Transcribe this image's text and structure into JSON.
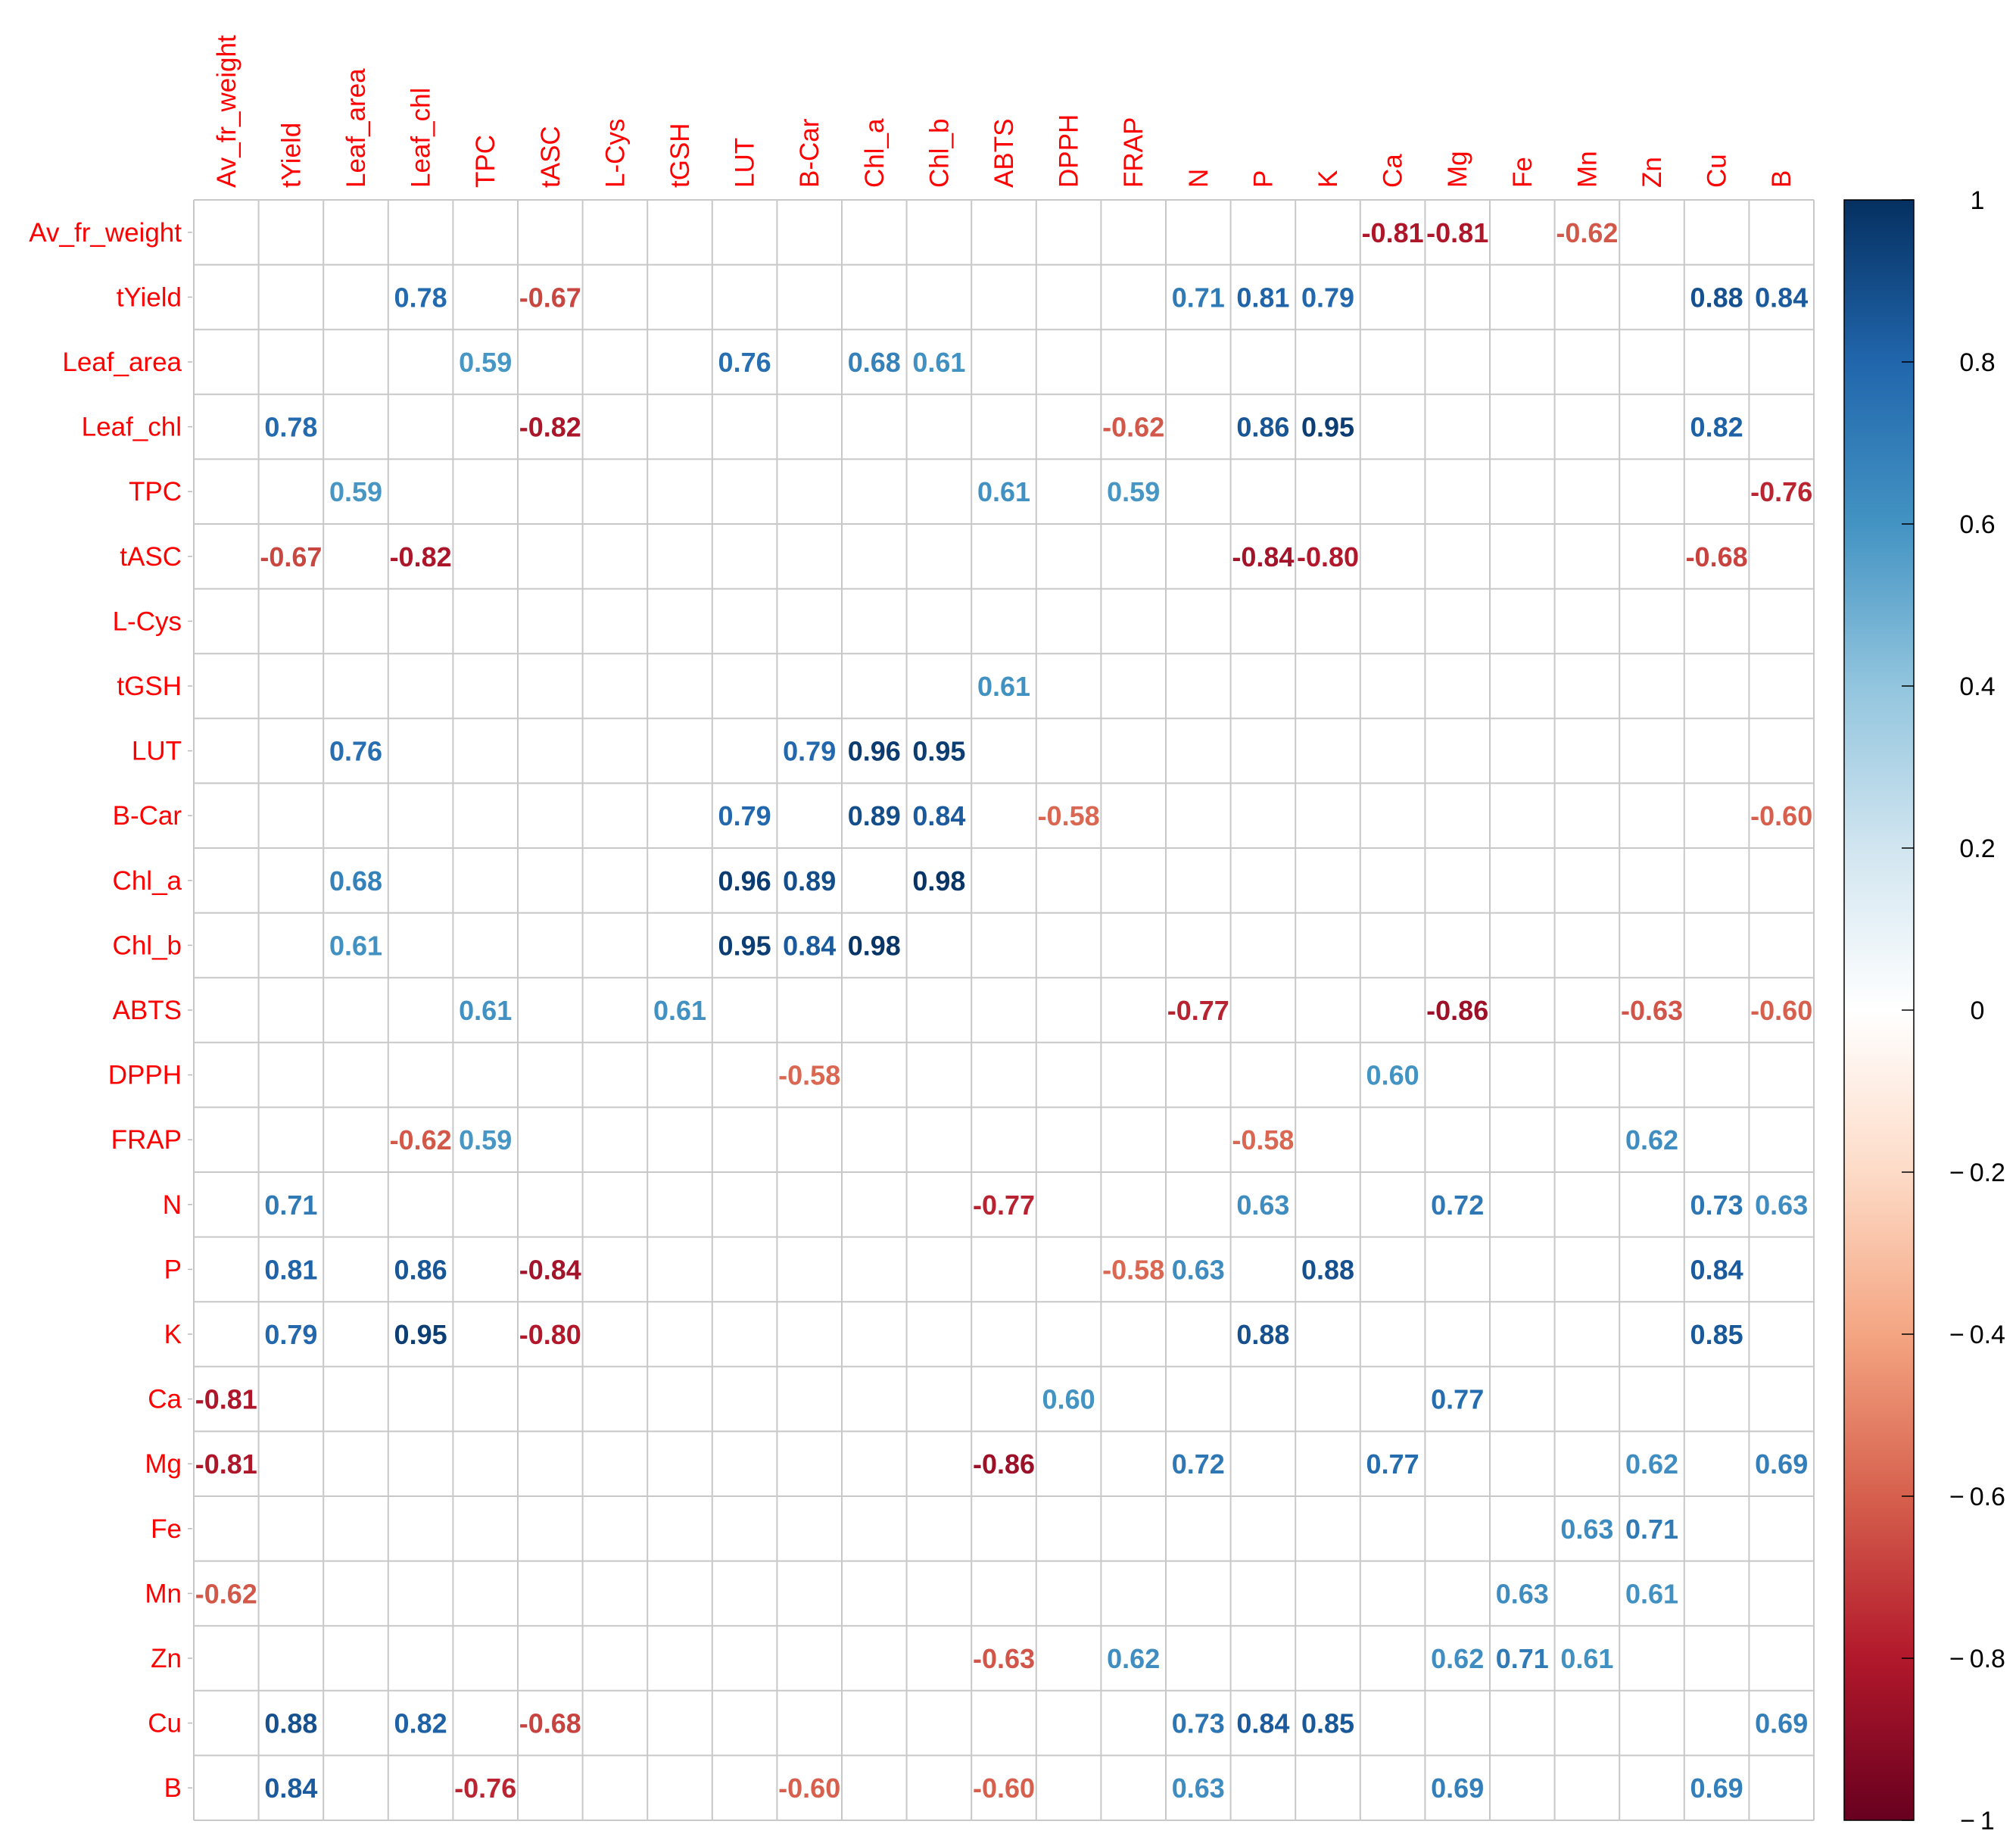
{
  "chart_data": {
    "type": "heatmap",
    "title": "",
    "variables": [
      "Av_fr_weight",
      "tYield",
      "Leaf_area",
      "Leaf_chl",
      "TPC",
      "tASC",
      "L-Cys",
      "tGSH",
      "LUT",
      "B-Car",
      "Chl_a",
      "Chl_b",
      "ABTS",
      "DPPH",
      "FRAP",
      "N",
      "P",
      "K",
      "Ca",
      "Mg",
      "Fe",
      "Mn",
      "Zn",
      "Cu",
      "B"
    ],
    "value_labels": [
      [
        "",
        "",
        "",
        "",
        "",
        "",
        "",
        "",
        "",
        "",
        "",
        "",
        "",
        "",
        "",
        "",
        "",
        "",
        "-0.81",
        "-0.81",
        "",
        "-0.62",
        "",
        "",
        ""
      ],
      [
        "",
        "",
        "",
        "0.78",
        "",
        "-0.67",
        "",
        "",
        "",
        "",
        "",
        "",
        "",
        "",
        "",
        "0.71",
        "0.81",
        "0.79",
        "",
        "",
        "",
        "",
        "",
        "0.88",
        "0.84"
      ],
      [
        "",
        "",
        "",
        "",
        "0.59",
        "",
        "",
        "",
        "0.76",
        "",
        "0.68",
        "0.61",
        "",
        "",
        "",
        "",
        "",
        "",
        "",
        "",
        "",
        "",
        "",
        "",
        ""
      ],
      [
        "",
        "0.78",
        "",
        "",
        "",
        "-0.82",
        "",
        "",
        "",
        "",
        "",
        "",
        "",
        "",
        "-0.62",
        "",
        "0.86",
        "0.95",
        "",
        "",
        "",
        "",
        "",
        "0.82",
        ""
      ],
      [
        "",
        "",
        "0.59",
        "",
        "",
        "",
        "",
        "",
        "",
        "",
        "",
        "",
        "0.61",
        "",
        "0.59",
        "",
        "",
        "",
        "",
        "",
        "",
        "",
        "",
        "",
        "-0.76"
      ],
      [
        "",
        "-0.67",
        "",
        "-0.82",
        "",
        "",
        "",
        "",
        "",
        "",
        "",
        "",
        "",
        "",
        "",
        "",
        "-0.84",
        "-0.80",
        "",
        "",
        "",
        "",
        "",
        "-0.68",
        ""
      ],
      [
        "",
        "",
        "",
        "",
        "",
        "",
        "",
        "",
        "",
        "",
        "",
        "",
        "",
        "",
        "",
        "",
        "",
        "",
        "",
        "",
        "",
        "",
        "",
        "",
        ""
      ],
      [
        "",
        "",
        "",
        "",
        "",
        "",
        "",
        "",
        "",
        "",
        "",
        "",
        "0.61",
        "",
        "",
        "",
        "",
        "",
        "",
        "",
        "",
        "",
        "",
        "",
        ""
      ],
      [
        "",
        "",
        "0.76",
        "",
        "",
        "",
        "",
        "",
        "",
        "0.79",
        "0.96",
        "0.95",
        "",
        "",
        "",
        "",
        "",
        "",
        "",
        "",
        "",
        "",
        "",
        "",
        ""
      ],
      [
        "",
        "",
        "",
        "",
        "",
        "",
        "",
        "",
        "0.79",
        "",
        "0.89",
        "0.84",
        "",
        "-0.58",
        "",
        "",
        "",
        "",
        "",
        "",
        "",
        "",
        "",
        "",
        "-0.60"
      ],
      [
        "",
        "",
        "0.68",
        "",
        "",
        "",
        "",
        "",
        "0.96",
        "0.89",
        "",
        "0.98",
        "",
        "",
        "",
        "",
        "",
        "",
        "",
        "",
        "",
        "",
        "",
        "",
        ""
      ],
      [
        "",
        "",
        "0.61",
        "",
        "",
        "",
        "",
        "",
        "0.95",
        "0.84",
        "0.98",
        "",
        "",
        "",
        "",
        "",
        "",
        "",
        "",
        "",
        "",
        "",
        "",
        "",
        ""
      ],
      [
        "",
        "",
        "",
        "",
        "0.61",
        "",
        "",
        "0.61",
        "",
        "",
        "",
        "",
        "",
        "",
        "",
        "-0.77",
        "",
        "",
        "",
        "-0.86",
        "",
        "",
        "-0.63",
        "",
        "-0.60"
      ],
      [
        "",
        "",
        "",
        "",
        "",
        "",
        "",
        "",
        "",
        "-0.58",
        "",
        "",
        "",
        "",
        "",
        "",
        "",
        "",
        "0.60",
        "",
        "",
        "",
        "",
        "",
        ""
      ],
      [
        "",
        "",
        "",
        "-0.62",
        "0.59",
        "",
        "",
        "",
        "",
        "",
        "",
        "",
        "",
        "",
        "",
        "",
        "-0.58",
        "",
        "",
        "",
        "",
        "",
        "0.62",
        "",
        ""
      ],
      [
        "",
        "0.71",
        "",
        "",
        "",
        "",
        "",
        "",
        "",
        "",
        "",
        "",
        "-0.77",
        "",
        "",
        "",
        "0.63",
        "",
        "",
        "0.72",
        "",
        "",
        "",
        "0.73",
        "0.63"
      ],
      [
        "",
        "0.81",
        "",
        "0.86",
        "",
        "-0.84",
        "",
        "",
        "",
        "",
        "",
        "",
        "",
        "",
        "-0.58",
        "0.63",
        "",
        "0.88",
        "",
        "",
        "",
        "",
        "",
        "0.84",
        ""
      ],
      [
        "",
        "0.79",
        "",
        "0.95",
        "",
        "-0.80",
        "",
        "",
        "",
        "",
        "",
        "",
        "",
        "",
        "",
        "",
        "0.88",
        "",
        "",
        "",
        "",
        "",
        "",
        "0.85",
        ""
      ],
      [
        "-0.81",
        "",
        "",
        "",
        "",
        "",
        "",
        "",
        "",
        "",
        "",
        "",
        "",
        "0.60",
        "",
        "",
        "",
        "",
        "",
        "0.77",
        "",
        "",
        "",
        "",
        ""
      ],
      [
        "-0.81",
        "",
        "",
        "",
        "",
        "",
        "",
        "",
        "",
        "",
        "",
        "",
        "-0.86",
        "",
        "",
        "0.72",
        "",
        "",
        "0.77",
        "",
        "",
        "",
        "0.62",
        "",
        "0.69"
      ],
      [
        "",
        "",
        "",
        "",
        "",
        "",
        "",
        "",
        "",
        "",
        "",
        "",
        "",
        "",
        "",
        "",
        "",
        "",
        "",
        "",
        "",
        "0.63",
        "0.71",
        "",
        ""
      ],
      [
        "-0.62",
        "",
        "",
        "",
        "",
        "",
        "",
        "",
        "",
        "",
        "",
        "",
        "",
        "",
        "",
        "",
        "",
        "",
        "",
        "",
        "0.63",
        "",
        "0.61",
        "",
        ""
      ],
      [
        "",
        "",
        "",
        "",
        "",
        "",
        "",
        "",
        "",
        "",
        "",
        "",
        "-0.63",
        "",
        "0.62",
        "",
        "",
        "",
        "",
        "0.62",
        "0.71",
        "0.61",
        "",
        "",
        ""
      ],
      [
        "",
        "0.88",
        "",
        "0.82",
        "",
        "-0.68",
        "",
        "",
        "",
        "",
        "",
        "",
        "",
        "",
        "",
        "0.73",
        "0.84",
        "0.85",
        "",
        "",
        "",
        "",
        "",
        "",
        "0.69"
      ],
      [
        "",
        "0.84",
        "",
        "",
        "-0.76",
        "",
        "",
        "",
        "",
        "-0.60",
        "",
        "",
        "-0.60",
        "",
        "",
        "0.63",
        "",
        "",
        "",
        "0.69",
        "",
        "",
        "",
        "0.69",
        ""
      ]
    ],
    "colorbar": {
      "range": [
        -1,
        1
      ],
      "ticks": [
        "1",
        "0.8",
        "0.6",
        "0.4",
        "0.2",
        "0",
        "− 0.2",
        "− 0.4",
        "− 0.6",
        "− 0.8",
        "− 1"
      ],
      "colors": [
        "#67001f",
        "#b2182b",
        "#d6604d",
        "#f4a582",
        "#fddbc7",
        "#ffffff",
        "#d1e5f0",
        "#92c5de",
        "#4393c3",
        "#2166ac",
        "#053061"
      ]
    },
    "label_color": "#ff0000",
    "grid": true
  }
}
